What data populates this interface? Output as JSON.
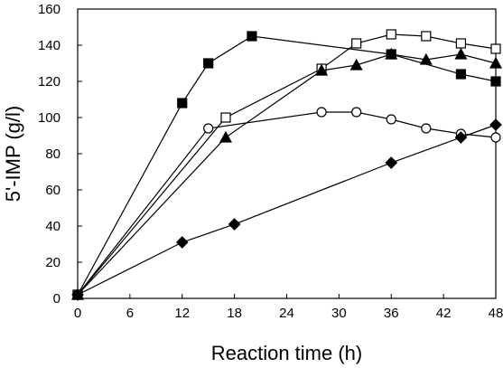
{
  "chart_data": {
    "type": "line",
    "xlabel": "Reaction time (h)",
    "ylabel": "5'-IMP (g/l)",
    "xlim": [
      0,
      48
    ],
    "ylim": [
      0,
      160
    ],
    "x_ticks": [
      0,
      6,
      12,
      18,
      24,
      30,
      36,
      42,
      48
    ],
    "y_ticks": [
      0,
      20,
      40,
      60,
      80,
      100,
      120,
      140,
      160
    ],
    "x_tick_labels": [
      "0",
      "6",
      "12",
      "18",
      "24",
      "30",
      "36",
      "42",
      "48"
    ],
    "y_tick_labels": [
      "0",
      "20",
      "40",
      "60",
      "80",
      "100",
      "120",
      "140",
      "160"
    ],
    "grid": false,
    "legend": "none",
    "series": [
      {
        "marker": "filled-square",
        "color": "#000000",
        "points": [
          [
            0,
            2
          ],
          [
            12,
            108
          ],
          [
            15,
            130
          ],
          [
            20,
            145
          ],
          [
            36,
            135
          ],
          [
            44,
            124
          ],
          [
            48,
            120
          ]
        ]
      },
      {
        "marker": "open-square",
        "color": "#000000",
        "points": [
          [
            0,
            2
          ],
          [
            17,
            100
          ],
          [
            28,
            127
          ],
          [
            32,
            141
          ],
          [
            36,
            146
          ],
          [
            40,
            145
          ],
          [
            44,
            141
          ],
          [
            48,
            138
          ]
        ]
      },
      {
        "marker": "filled-triangle",
        "color": "#000000",
        "points": [
          [
            0,
            2
          ],
          [
            17,
            89
          ],
          [
            28,
            126
          ],
          [
            32,
            129
          ],
          [
            36,
            135
          ],
          [
            40,
            132
          ],
          [
            44,
            135
          ],
          [
            48,
            130
          ]
        ]
      },
      {
        "marker": "open-circle",
        "color": "#000000",
        "points": [
          [
            0,
            2
          ],
          [
            15,
            94
          ],
          [
            28,
            103
          ],
          [
            32,
            103
          ],
          [
            36,
            99
          ],
          [
            40,
            94
          ],
          [
            44,
            91
          ],
          [
            48,
            89
          ]
        ]
      },
      {
        "marker": "filled-diamond",
        "color": "#000000",
        "points": [
          [
            0,
            2
          ],
          [
            12,
            31
          ],
          [
            18,
            41
          ],
          [
            36,
            75
          ],
          [
            44,
            89
          ],
          [
            48,
            96
          ]
        ]
      }
    ]
  }
}
